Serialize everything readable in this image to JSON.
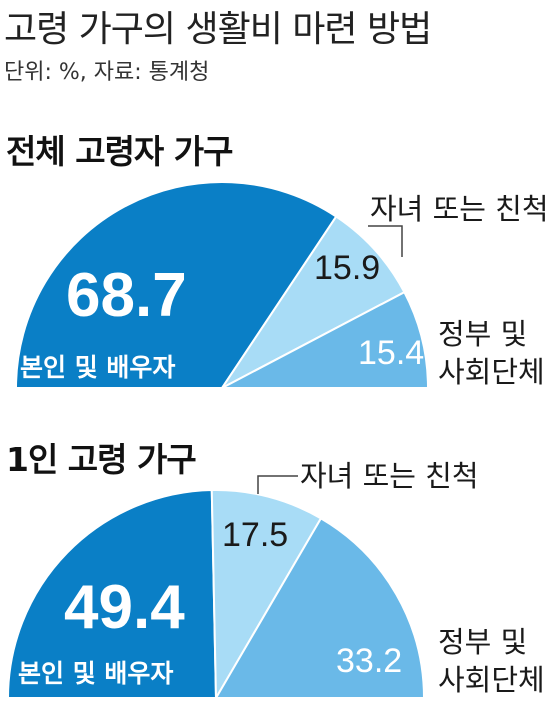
{
  "title": "고령 가구의 생활비 마련 방법",
  "source": "단위: %, 자료: 통계청",
  "colors": {
    "self": "#0a7fc6",
    "children": "#a8dcf6",
    "government": "#6ab9e8"
  },
  "chart_data": [
    {
      "type": "pie",
      "shape": "half-pie",
      "title": "전체 고령자 가구",
      "categories": [
        "본인 및 배우자",
        "자녀 또는 친척",
        "정부 및 사회단체"
      ],
      "values": [
        68.7,
        15.9,
        15.4
      ],
      "value_labels": [
        "68.7",
        "15.9",
        "15.4"
      ],
      "external_labels": {
        "children": "자녀 또는 친척",
        "government_line1": "정부 및",
        "government_line2": "사회단체"
      }
    },
    {
      "type": "pie",
      "shape": "half-pie",
      "title": "1인 고령 가구",
      "categories": [
        "본인 및 배우자",
        "자녀 또는 친척",
        "정부 및 사회단체"
      ],
      "values": [
        49.4,
        17.5,
        33.2
      ],
      "value_labels": [
        "49.4",
        "17.5",
        "33.2"
      ],
      "external_labels": {
        "children": "자녀 또는 친척",
        "government_line1": "정부 및",
        "government_line2": "사회단체"
      }
    }
  ]
}
